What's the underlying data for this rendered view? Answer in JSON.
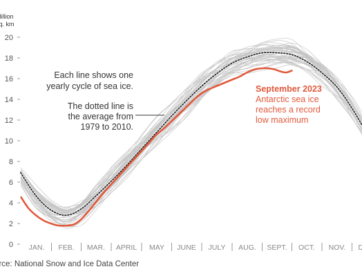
{
  "chart_data": {
    "type": "line",
    "ylabel_lines": [
      "Million",
      "sq. km"
    ],
    "ylim": [
      0,
      20
    ],
    "y_ticks": [
      "0",
      "2",
      "4",
      "6",
      "8",
      "10",
      "12",
      "14",
      "16",
      "18",
      "20"
    ],
    "y_tick_values": [
      0,
      2,
      4,
      6,
      8,
      10,
      12,
      14,
      16,
      18,
      20
    ],
    "month_labels": [
      "JAN.",
      "FEB.",
      "MAR.",
      "APRIL",
      "MAY",
      "JUNE",
      "JULY",
      "AUG.",
      "SEPT.",
      "OCT.",
      "NOV.",
      "DEC."
    ],
    "x_unit": "month",
    "xlim": [
      0,
      11.6
    ],
    "colors": {
      "highlight": "#e0593c",
      "average": "#333333",
      "years": "#c4c4c4",
      "axis": "#999999"
    },
    "yearly_lines_description": "gray lines 1979-2022",
    "average_series": {
      "x": [
        0.0,
        0.5,
        1.0,
        1.5,
        2.0,
        2.5,
        3.0,
        3.5,
        4.0,
        4.5,
        5.0,
        5.5,
        6.0,
        6.5,
        7.0,
        7.5,
        8.0,
        8.5,
        9.0,
        9.5,
        10.0,
        10.5,
        11.0,
        11.5
      ],
      "y": [
        6.9,
        4.7,
        3.3,
        2.8,
        3.4,
        4.7,
        6.1,
        7.6,
        9.2,
        10.8,
        12.4,
        13.9,
        15.3,
        16.5,
        17.5,
        18.1,
        18.5,
        18.5,
        18.3,
        17.6,
        16.5,
        15.1,
        13.0,
        10.5
      ]
    },
    "highlight_series": {
      "name": "2023",
      "x": [
        0.0,
        0.25,
        0.5,
        0.75,
        1.0,
        1.25,
        1.5,
        1.75,
        2.0,
        2.25,
        2.5,
        2.75,
        3.0,
        3.25,
        3.5,
        3.75,
        4.0,
        4.25,
        4.5,
        4.75,
        5.0,
        5.25,
        5.5,
        5.75,
        6.0,
        6.25,
        6.5,
        6.75,
        7.0,
        7.25,
        7.5,
        7.75,
        8.0,
        8.2,
        8.4,
        8.6,
        8.8,
        9.0
      ],
      "y": [
        4.6,
        3.5,
        2.8,
        2.3,
        2.0,
        1.8,
        1.8,
        1.9,
        2.4,
        3.2,
        4.1,
        5.0,
        5.8,
        6.6,
        7.4,
        8.2,
        9.0,
        9.8,
        10.6,
        11.2,
        11.9,
        12.6,
        13.3,
        14.0,
        14.6,
        15.0,
        15.3,
        15.6,
        15.9,
        16.2,
        16.6,
        16.9,
        17.0,
        17.0,
        16.9,
        16.7,
        16.6,
        16.8
      ]
    },
    "annotations": {
      "lines_note": [
        "Each line shows one",
        "yearly cycle of sea ice."
      ],
      "average_note": [
        "The dotted line is",
        "the average from",
        "1979 to 2010."
      ],
      "highlight_title": "September 2023",
      "highlight_note": [
        "Antarctic sea ice",
        "reaches a record",
        "low maximum"
      ]
    },
    "source": "Source: National Snow and Ice Data Center"
  }
}
